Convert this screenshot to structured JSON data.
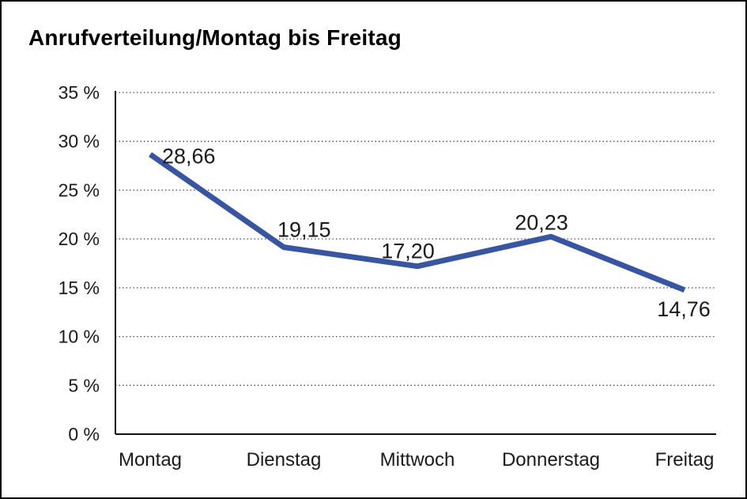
{
  "chart_data": {
    "type": "line",
    "title": "Anrufverteilung/Montag bis Freitag",
    "categories": [
      "Montag",
      "Dienstag",
      "Mittwoch",
      "Donnerstag",
      "Freitag"
    ],
    "series": [
      {
        "name": "Anrufverteilung",
        "values": [
          28.66,
          19.15,
          17.2,
          20.23,
          14.76
        ],
        "point_labels": [
          "28,66",
          "19,15",
          "17,20",
          "20,23",
          "14,76"
        ]
      }
    ],
    "xlabel": "",
    "ylabel": "",
    "ylim": [
      0,
      35
    ],
    "ytick_step": 5,
    "ytick_labels": [
      "0 %",
      "5 %",
      "10 %",
      "15 %",
      "20 %",
      "25 %",
      "30 %",
      "35 %"
    ],
    "grid": "horizontal-dotted",
    "legend": "none",
    "colors": {
      "line": "#3755A0",
      "axis": "#111111",
      "gridline": "#4d4d4d",
      "text": "#1a1a1a",
      "background": "#ffffff",
      "frame_border": "#000000"
    }
  }
}
